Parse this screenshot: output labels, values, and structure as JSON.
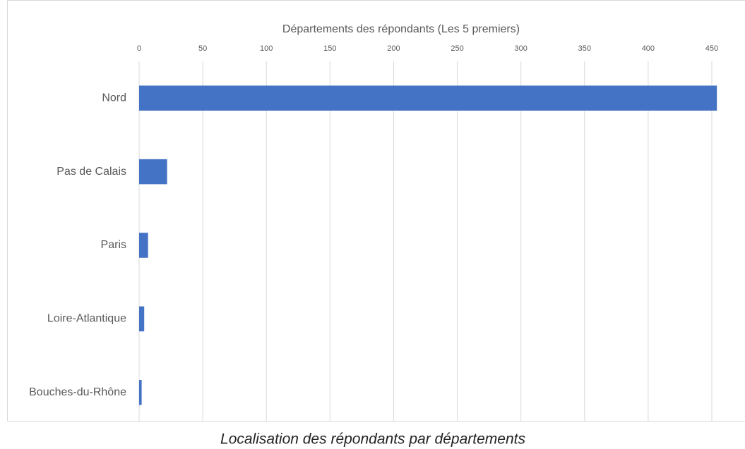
{
  "chart_data": {
    "type": "barh",
    "title": "Départements des répondants (Les 5 premiers)",
    "caption": "Localisation des répondants par départements",
    "categories": [
      "Nord",
      "Pas de Calais",
      "Paris",
      "Loire-Atlantique",
      "Bouches-du-Rhône"
    ],
    "values": [
      454,
      22,
      7,
      4,
      2
    ],
    "color": "#4472c4",
    "xlim": [
      0,
      455
    ],
    "xticks": [
      0,
      50,
      100,
      150,
      200,
      250,
      300,
      350,
      400,
      450
    ],
    "grid": true
  }
}
